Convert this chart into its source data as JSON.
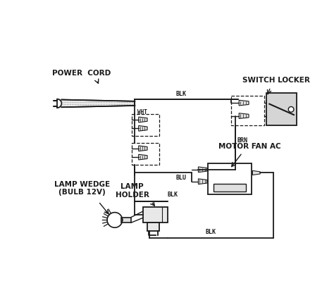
{
  "bg_color": "#ffffff",
  "line_color": "#1a1a1a",
  "text_color": "#1a1a1a",
  "labels": {
    "power_cord": "POWER  CORD",
    "switch_locker": "SWITCH LOCKER",
    "motor_fan": "MOTOR FAN AC",
    "lamp_wedge": "LAMP WEDGE\n(BULB 12V)",
    "lamp_holder": "LAMP\nHOLDER",
    "blk1": "BLK",
    "wht": "WHT",
    "brn": "BRN",
    "blu": "BLU",
    "blk2": "BLK",
    "blk3": "BLK"
  },
  "figsize": [
    4.74,
    4.09
  ],
  "dpi": 100
}
